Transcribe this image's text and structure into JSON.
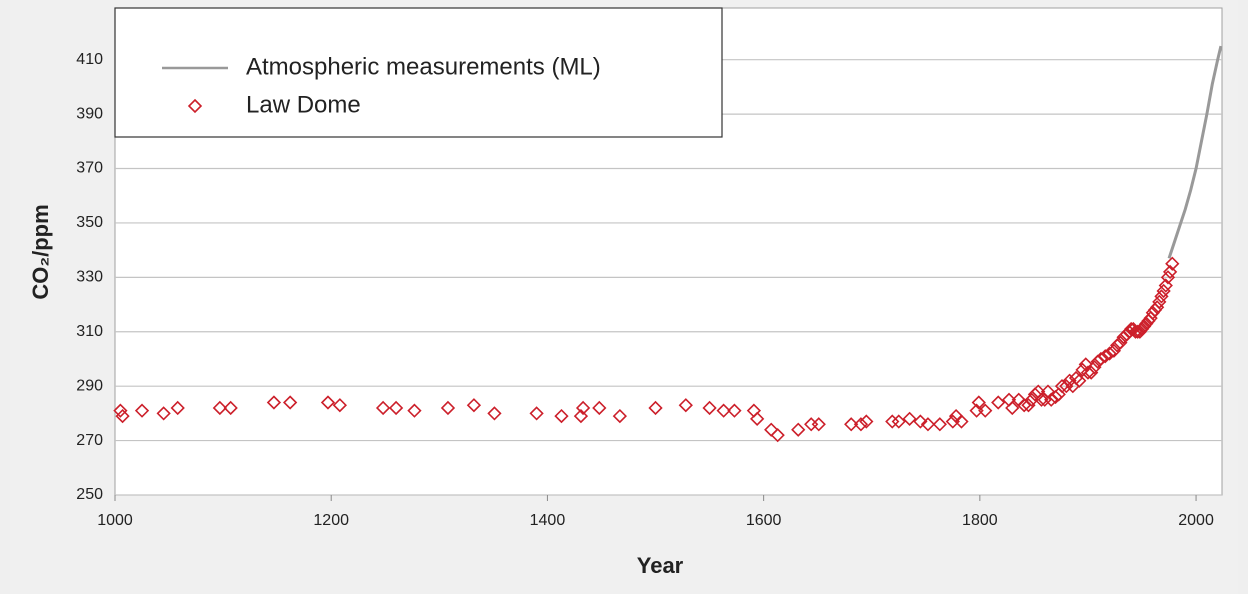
{
  "chart_data": {
    "type": "scatter",
    "x_label": "Year",
    "y_label": "CO₂/ppm",
    "xlim": [
      1000,
      2024
    ],
    "ylim": [
      250,
      429
    ],
    "xticks": [
      1000,
      1200,
      1400,
      1600,
      1800,
      2000
    ],
    "yticks": [
      250,
      270,
      290,
      310,
      330,
      350,
      370,
      390,
      410
    ],
    "grid": true,
    "legend": "top-left",
    "series": [
      {
        "name": "Atmospheric measurements (ML)",
        "color": "#999999",
        "style": "line",
        "x": [
          1975,
          1980,
          1985,
          1990,
          1995,
          2000,
          2005,
          2010,
          2015,
          2020,
          2023
        ],
        "values": [
          337,
          343,
          349,
          355,
          362,
          370,
          380,
          390,
          401,
          410,
          415
        ]
      },
      {
        "name": "Law Dome",
        "color": "#cc1f2a",
        "style": "diamond",
        "x": [
          1005,
          1007,
          1025,
          1045,
          1058,
          1097,
          1107,
          1147,
          1162,
          1197,
          1208,
          1248,
          1260,
          1277,
          1308,
          1332,
          1351,
          1390,
          1413,
          1431,
          1433,
          1448,
          1467,
          1500,
          1528,
          1550,
          1563,
          1573,
          1591,
          1594,
          1607,
          1613,
          1632,
          1644,
          1651,
          1681,
          1690,
          1695,
          1719,
          1725,
          1735,
          1745,
          1752,
          1763,
          1775,
          1778,
          1783,
          1797,
          1799,
          1805,
          1817,
          1827,
          1830,
          1836,
          1841,
          1845,
          1848,
          1851,
          1854,
          1857,
          1860,
          1863,
          1866,
          1870,
          1873,
          1876,
          1880,
          1883,
          1886,
          1889,
          1892,
          1895,
          1898,
          1900,
          1903,
          1906,
          1909,
          1912,
          1916,
          1920,
          1924,
          1927,
          1930,
          1933,
          1936,
          1938,
          1940,
          1942,
          1944,
          1946,
          1948,
          1950,
          1952,
          1954,
          1956,
          1958,
          1960,
          1962,
          1964,
          1966,
          1968,
          1970,
          1972,
          1974,
          1976,
          1978
        ],
        "values": [
          281,
          279,
          281,
          280,
          282,
          282,
          282,
          284,
          284,
          284,
          283,
          282,
          282,
          281,
          282,
          283,
          280,
          280,
          279,
          279,
          282,
          282,
          279,
          282,
          283,
          282,
          281,
          281,
          281,
          278,
          274,
          272,
          274,
          276,
          276,
          276,
          276,
          277,
          277,
          277,
          278,
          277,
          276,
          276,
          277,
          279,
          277,
          281,
          284,
          281,
          284,
          285,
          282,
          285,
          283,
          283,
          285,
          287,
          288,
          285,
          285,
          288,
          285,
          286,
          287,
          290,
          290,
          292,
          290,
          293,
          292,
          296,
          298,
          295,
          295,
          297,
          299,
          300,
          301,
          302,
          303,
          305,
          306,
          308,
          309,
          310,
          311,
          311,
          310,
          310,
          310,
          311,
          312,
          313,
          314,
          315,
          317,
          318,
          319,
          321,
          323,
          325,
          327,
          330,
          332,
          335
        ]
      }
    ]
  }
}
